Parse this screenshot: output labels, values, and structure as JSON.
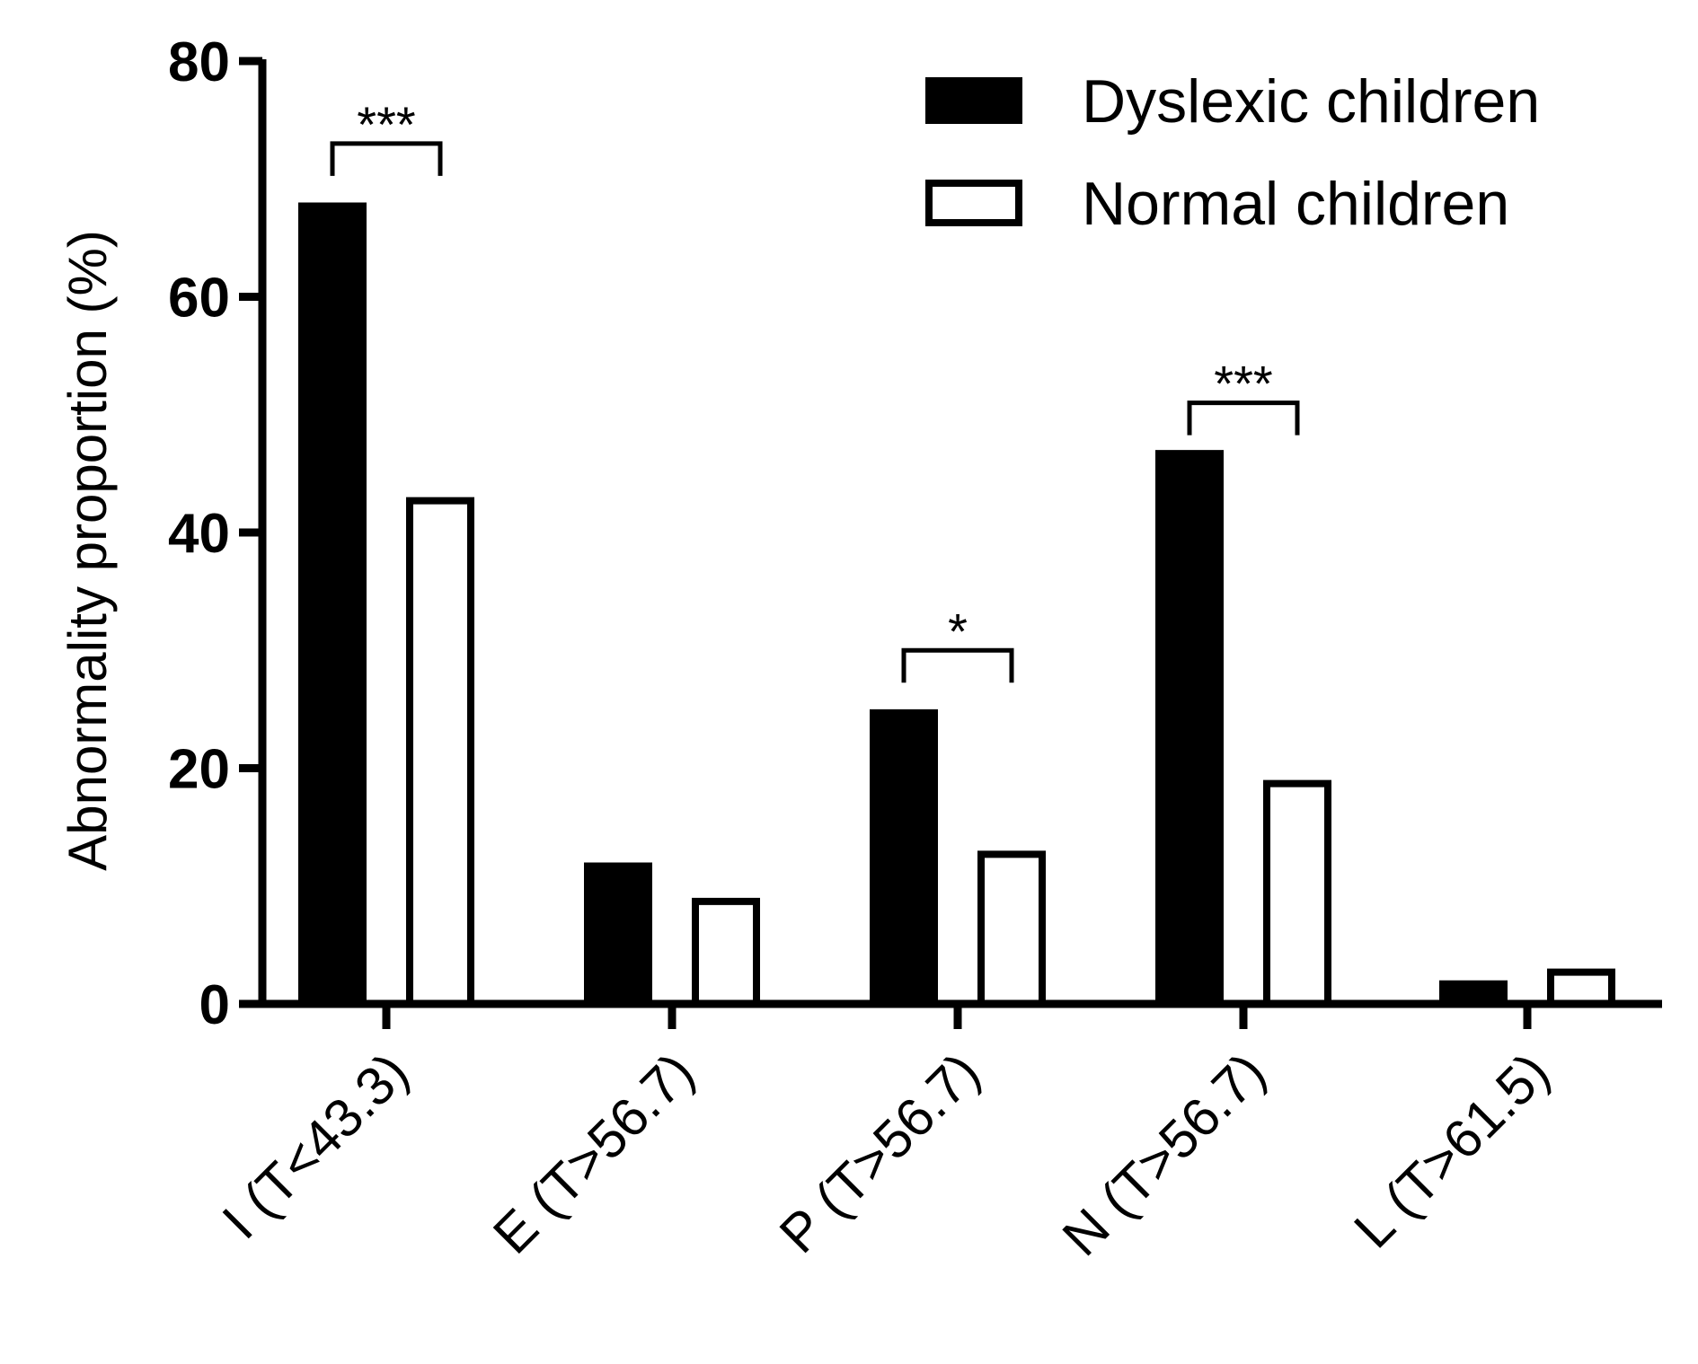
{
  "chart_data": {
    "type": "bar",
    "title": "",
    "xlabel": "",
    "ylabel": "Abnormality proportion (%)",
    "ylim": [
      0,
      80
    ],
    "yticks": [
      0,
      20,
      40,
      60,
      80
    ],
    "categories": [
      "I (T<43.3)",
      "E (T>56.7)",
      "P (T>56.7)",
      "N (T>56.7)",
      "L (T>61.5)"
    ],
    "series": [
      {
        "name": "Dyslexic children",
        "fill": "#000000",
        "stroke": "#000000",
        "values": [
          68,
          12,
          25,
          47,
          2
        ]
      },
      {
        "name": "Normal children",
        "fill": "#ffffff",
        "stroke": "#000000",
        "values": [
          43,
          9,
          13,
          19,
          3
        ]
      }
    ],
    "legend_position": "top-right",
    "significance": [
      {
        "category_index": 0,
        "label": "***",
        "level": 73
      },
      {
        "category_index": 2,
        "label": "*",
        "level": 30
      },
      {
        "category_index": 3,
        "label": "***",
        "level": 51
      }
    ]
  }
}
